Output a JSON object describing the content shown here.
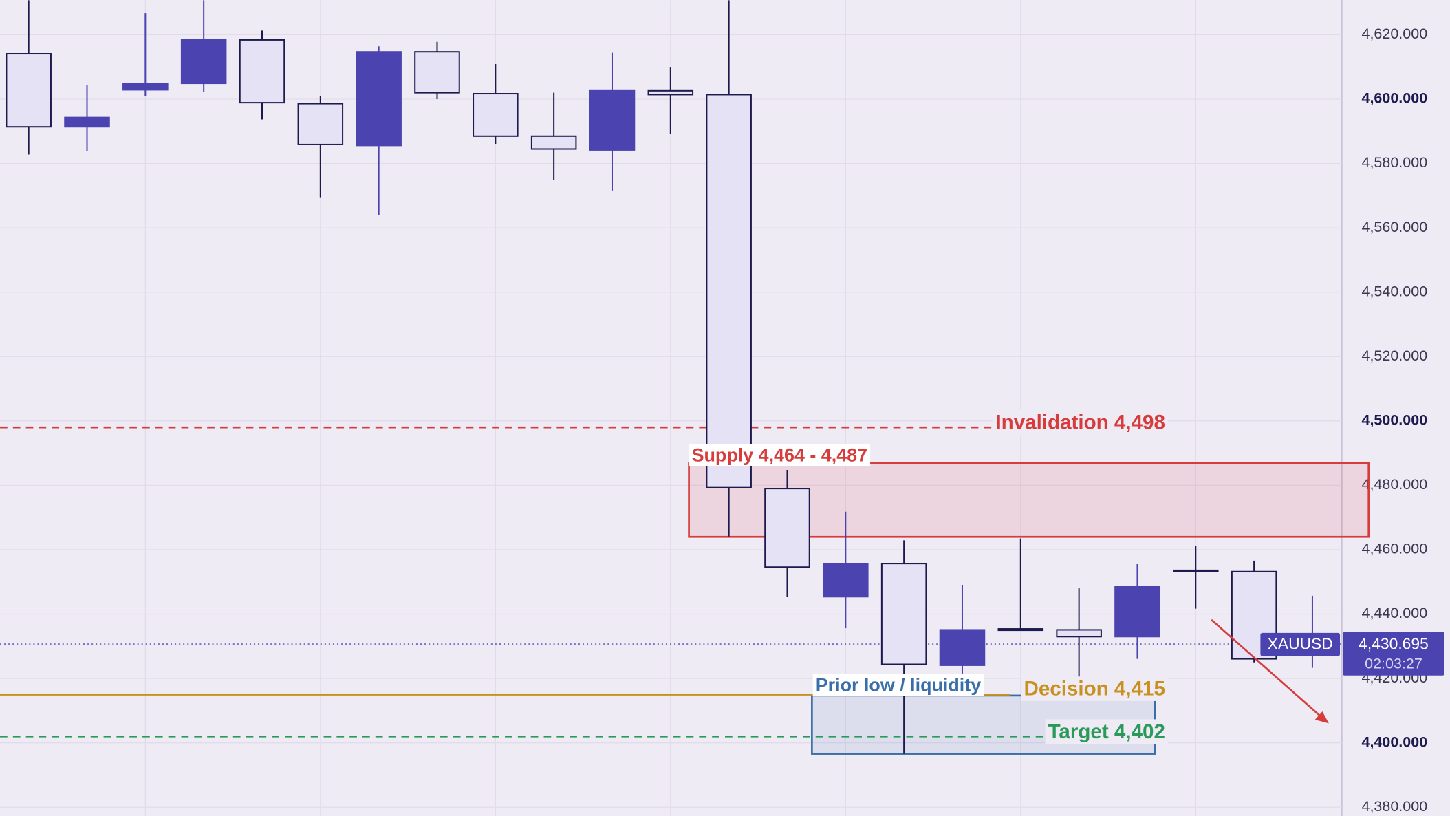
{
  "chart_data": {
    "type": "candlestick",
    "open": [
      4614.1,
      4591.4,
      4602.9,
      4604.9,
      4618.4,
      4598.6,
      4585.6,
      4614.7,
      4601.7,
      4588.5,
      4584.2,
      4602.6,
      4601.4,
      4479.0,
      4445.4,
      4455.7,
      4424.1,
      4435.4,
      4435.1,
      4433.0,
      4453.6,
      4453.2,
      4429.5
    ],
    "high": [
      4630.7,
      4604.3,
      4626.7,
      4630.7,
      4621.3,
      4600.9,
      4616.4,
      4617.8,
      4610.9,
      4602.0,
      4614.4,
      4609.8,
      4630.7,
      4484.8,
      4471.8,
      4462.9,
      4449.1,
      4463.5,
      4448.0,
      4455.5,
      4461.2,
      4456.6,
      4445.7
    ],
    "low": [
      4582.8,
      4583.9,
      4600.9,
      4602.3,
      4593.7,
      4569.3,
      4564.1,
      4600.0,
      4585.9,
      4575.0,
      4571.6,
      4589.1,
      4464.1,
      4445.4,
      4435.6,
      4396.6,
      4421.0,
      4435.1,
      4418.7,
      4426.1,
      4441.7,
      4425.0,
      4423.3
    ],
    "close": [
      4591.4,
      4594.3,
      4604.9,
      4618.4,
      4598.9,
      4585.9,
      4614.7,
      4602.0,
      4588.5,
      4584.5,
      4602.6,
      4601.4,
      4479.3,
      4454.6,
      4455.7,
      4424.4,
      4435.1,
      4435.1,
      4433.0,
      4448.6,
      4453.2,
      4426.1,
      4430.7
    ],
    "up_color": "#4b44b0",
    "down_color": "#e4e2f4",
    "outline_color": "#1d1a4e",
    "ylim": [
      4377.3,
      4630.75
    ],
    "yticks": [
      {
        "value": 4380,
        "label": "4,380.000"
      },
      {
        "value": 4400,
        "label": "4,400.000"
      },
      {
        "value": 4420,
        "label": "4,420.000"
      },
      {
        "value": 4440,
        "label": "4,440.000"
      },
      {
        "value": 4460,
        "label": "4,460.000"
      },
      {
        "value": 4480,
        "label": "4,480.000"
      },
      {
        "value": 4500,
        "label": "4,500.000"
      },
      {
        "value": 4520,
        "label": "4,520.000"
      },
      {
        "value": 4540,
        "label": "4,540.000"
      },
      {
        "value": 4560,
        "label": "4,560.000"
      },
      {
        "value": 4580,
        "label": "4,580.000"
      },
      {
        "value": 4600,
        "label": "4,600.000"
      },
      {
        "value": 4620,
        "label": "4,620.000"
      }
    ],
    "grid": true,
    "levels": [
      {
        "label": "Invalidation 4,498",
        "value": 4498,
        "color": "#d63c3c",
        "style": "dashed"
      },
      {
        "label": "Decision 4,415",
        "value": 4415,
        "color": "#c8901e",
        "style": "solid"
      },
      {
        "label": "Target 4,402",
        "value": 4402,
        "color": "#2a9a5a",
        "style": "dashed"
      }
    ],
    "zones": [
      {
        "label": "Supply 4,464 - 4,487",
        "low": 4464,
        "high": 4487,
        "color": "#d63c3c"
      },
      {
        "label": "Prior low / liquidity",
        "low": 4396.6,
        "high": 4414.7,
        "color": "#3a6ea8"
      }
    ],
    "last_price": {
      "symbol": "XAUUSD",
      "value": 4430.695,
      "label": "4,430.695",
      "countdown": "02:03:27",
      "color": "#4b44b0"
    }
  }
}
